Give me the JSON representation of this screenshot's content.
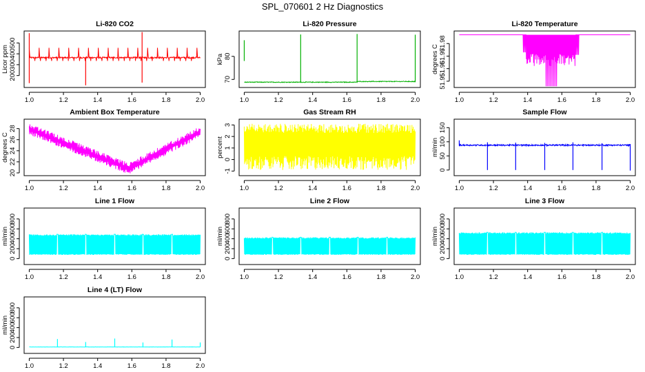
{
  "figure_title": "SPL_070601  2 Hz Diagnostics",
  "chart_data": [
    {
      "type": "line",
      "title": "Li-820 CO2",
      "xlabel": "",
      "ylabel": "Licor ppm",
      "color": "#ff0000",
      "xlim": [
        0.97,
        2.03
      ],
      "ylim": [
        90,
        610
      ],
      "xticks": [
        "1.0",
        "1.2",
        "1.4",
        "1.6",
        "1.8",
        "2.0"
      ],
      "yticks": [
        "200",
        "300",
        "400",
        "500"
      ],
      "baseline": 365,
      "noise": 6,
      "pattern": "co2",
      "spikes": [
        {
          "x": 1.0,
          "ymin": 130,
          "ymax": 590
        },
        {
          "x": 1.33,
          "ymin": 110,
          "ymax": 365
        },
        {
          "x": 1.66,
          "ymin": 135,
          "ymax": 600
        }
      ]
    },
    {
      "type": "line",
      "title": "Li-820 Pressure",
      "xlabel": "",
      "ylabel": "kPa",
      "color": "#00b000",
      "xlim": [
        0.97,
        2.03
      ],
      "ylim": [
        66.5,
        91
      ],
      "xticks": [
        "1.0",
        "1.2",
        "1.4",
        "1.6",
        "1.8",
        "2.0"
      ],
      "yticks": [
        "70",
        "80"
      ],
      "baseline": 68.8,
      "noise": 0.15,
      "pattern": "pressure",
      "spikes": [
        {
          "x": 1.0,
          "ymin": 78,
          "ymax": 87
        },
        {
          "x": 1.33,
          "ymin": 68.8,
          "ymax": 89.5
        },
        {
          "x": 1.66,
          "ymin": 68.8,
          "ymax": 89.7
        },
        {
          "x": 2.0,
          "ymin": 68.8,
          "ymax": 89.4
        }
      ]
    },
    {
      "type": "line",
      "title": "Li-820 Temperature",
      "xlabel": "",
      "ylabel": "degrees C",
      "color": "#ff00ff",
      "xlim": [
        0.97,
        2.03
      ],
      "ylim": [
        51.945,
        51.99
      ],
      "xticks": [
        "1.0",
        "1.2",
        "1.4",
        "1.6",
        "1.8",
        "2.0"
      ],
      "yticks": [
        "51.95",
        "51.96",
        "51.97",
        "51.98"
      ],
      "baseline": 51.987,
      "noise": 0.0003,
      "pattern": "temp820",
      "spikes": []
    },
    {
      "type": "line",
      "title": "Ambient Box Temperature",
      "xlabel": "",
      "ylabel": "degrees C",
      "color": "#ff00ff",
      "xlim": [
        0.97,
        2.03
      ],
      "ylim": [
        19.5,
        29.7
      ],
      "xticks": [
        "1.0",
        "1.2",
        "1.4",
        "1.6",
        "1.8",
        "2.0"
      ],
      "yticks": [
        "20",
        "22",
        "24",
        "26",
        "28"
      ],
      "baseline": 24,
      "noise": 0.9,
      "pattern": "ambient",
      "spikes": []
    },
    {
      "type": "line",
      "title": "Gas Stream RH",
      "xlabel": "",
      "ylabel": "percent",
      "color": "#ffff00",
      "xlim": [
        0.97,
        2.03
      ],
      "ylim": [
        -1.4,
        3.5
      ],
      "xticks": [
        "1.0",
        "1.2",
        "1.4",
        "1.6",
        "1.8",
        "2.0"
      ],
      "yticks": [
        "-1",
        "0",
        "1",
        "2",
        "3"
      ],
      "baseline": 1.0,
      "noise": 1.0,
      "pattern": "rh",
      "spikes": []
    },
    {
      "type": "line",
      "title": "Sample Flow",
      "xlabel": "",
      "ylabel": "ml/min",
      "color": "#0000ff",
      "xlim": [
        0.97,
        2.03
      ],
      "ylim": [
        -20,
        180
      ],
      "xticks": [
        "1.0",
        "1.2",
        "1.4",
        "1.6",
        "1.8",
        "2.0"
      ],
      "yticks": [
        "0",
        "50",
        "100",
        "150"
      ],
      "baseline": 88,
      "noise": 2.5,
      "pattern": "sample",
      "spikes": [
        {
          "x": 1.0,
          "ymin": 86,
          "ymax": 105
        },
        {
          "x": 1.165,
          "ymin": 0,
          "ymax": 98
        },
        {
          "x": 1.33,
          "ymin": 0,
          "ymax": 97
        },
        {
          "x": 1.5,
          "ymin": 0,
          "ymax": 96
        },
        {
          "x": 1.665,
          "ymin": 0,
          "ymax": 98
        },
        {
          "x": 1.835,
          "ymin": 0,
          "ymax": 95
        },
        {
          "x": 2.0,
          "ymin": -2,
          "ymax": 92
        }
      ]
    },
    {
      "type": "line",
      "title": "Line 1 Flow",
      "xlabel": "",
      "ylabel": "ml/min",
      "color": "#00ffff",
      "xlim": [
        0.97,
        2.03
      ],
      "ylim": [
        -120,
        1020
      ],
      "xticks": [
        "1.0",
        "1.2",
        "1.4",
        "1.6",
        "1.8",
        "2.0"
      ],
      "yticks": [
        "0",
        "200",
        "400",
        "600",
        "800"
      ],
      "baseline": 470,
      "noise": 10,
      "pattern": "lineflow",
      "low": 75,
      "high": 490,
      "spikes": []
    },
    {
      "type": "line",
      "title": "Line 2 Flow",
      "xlabel": "",
      "ylabel": "ml/min",
      "color": "#00ffff",
      "xlim": [
        0.97,
        2.03
      ],
      "ylim": [
        -120,
        1020
      ],
      "xticks": [
        "1.0",
        "1.2",
        "1.4",
        "1.6",
        "1.8",
        "2.0"
      ],
      "yticks": [
        "0",
        "200",
        "400",
        "600",
        "800"
      ],
      "baseline": 410,
      "noise": 10,
      "pattern": "lineflow",
      "low": 75,
      "high": 430,
      "spikes": []
    },
    {
      "type": "line",
      "title": "Line 3 Flow",
      "xlabel": "",
      "ylabel": "ml/min",
      "color": "#00ffff",
      "xlim": [
        0.97,
        2.03
      ],
      "ylim": [
        -120,
        1020
      ],
      "xticks": [
        "1.0",
        "1.2",
        "1.4",
        "1.6",
        "1.8",
        "2.0"
      ],
      "yticks": [
        "0",
        "200",
        "400",
        "600",
        "800"
      ],
      "baseline": 510,
      "noise": 10,
      "pattern": "lineflow",
      "low": 75,
      "high": 530,
      "spikes": []
    },
    {
      "type": "line",
      "title": "Line 4 (LT) Flow",
      "xlabel": "",
      "ylabel": "ml/min",
      "color": "#00ffff",
      "xlim": [
        0.97,
        2.03
      ],
      "ylim": [
        -120,
        1020
      ],
      "xticks": [
        "1.0",
        "1.2",
        "1.4",
        "1.6",
        "1.8",
        "2.0"
      ],
      "yticks": [
        "0",
        "200",
        "400",
        "600",
        "800"
      ],
      "baseline": 10,
      "noise": 2,
      "pattern": "lt",
      "spikes": [
        {
          "x": 1.165,
          "ymin": 10,
          "ymax": 170
        },
        {
          "x": 1.33,
          "ymin": 10,
          "ymax": 110
        },
        {
          "x": 1.5,
          "ymin": 10,
          "ymax": 180
        },
        {
          "x": 1.665,
          "ymin": 10,
          "ymax": 100
        },
        {
          "x": 1.835,
          "ymin": 10,
          "ymax": 160
        },
        {
          "x": 2.0,
          "ymin": 10,
          "ymax": 100
        }
      ]
    }
  ]
}
